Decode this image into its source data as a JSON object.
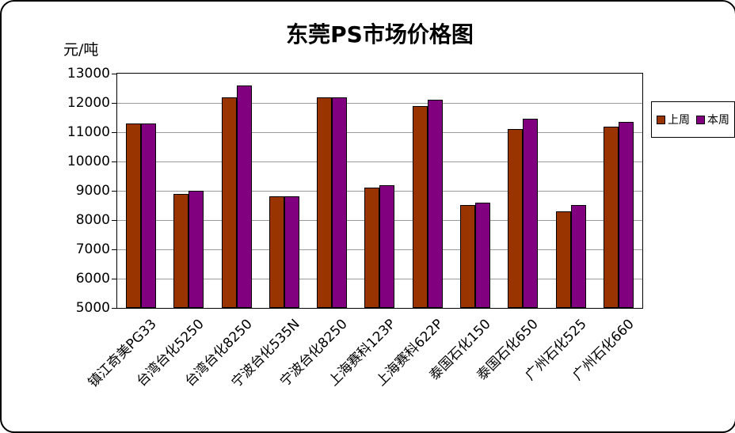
{
  "chart_data": {
    "type": "bar",
    "title": "东莞PS市场价格图",
    "ylabel": "元/吨",
    "categories": [
      "镇江奇美PG33",
      "台湾台化5250",
      "台湾台化8250",
      "宁波台化535N",
      "宁波台化8250",
      "上海赛科123P",
      "上海赛科622P",
      "泰国石化150",
      "泰国石化650",
      "广州石化525",
      "广州石化660"
    ],
    "series": [
      {
        "name": "上周",
        "color": "#993300",
        "values": [
          11300,
          8900,
          12200,
          8800,
          12200,
          9100,
          11900,
          8500,
          11100,
          8300,
          11200
        ]
      },
      {
        "name": "本周",
        "color": "#800080",
        "values": [
          11300,
          9000,
          12600,
          8800,
          12200,
          9200,
          12100,
          8600,
          11450,
          8500,
          11350
        ]
      }
    ],
    "ylim": [
      5000,
      13000
    ],
    "ytick_step": 1000,
    "grid": true,
    "legend_position": "right"
  }
}
